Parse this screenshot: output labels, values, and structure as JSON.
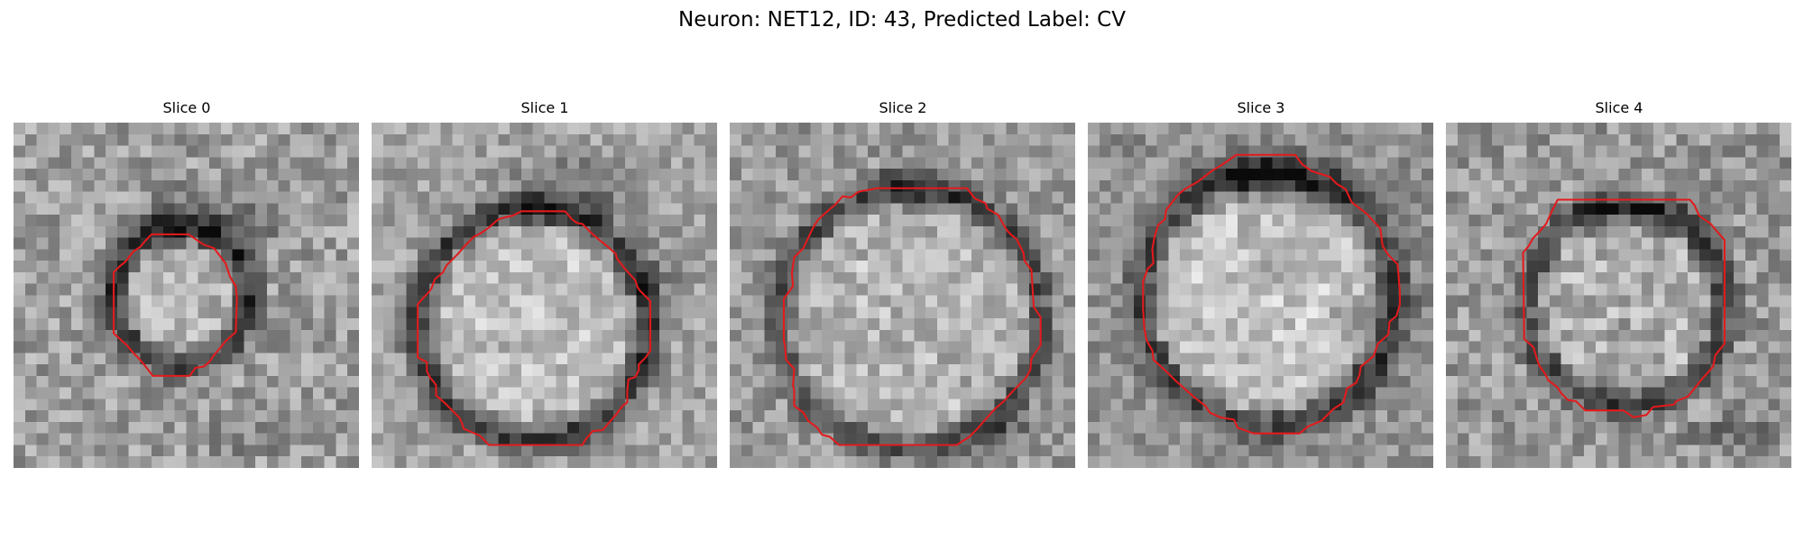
{
  "figure": {
    "title": "Neuron: NET12, ID: 43, Predicted Label: CV",
    "outline_color": "#e31a1c",
    "colormap": "grayscale"
  },
  "panels": [
    {
      "title": "Slice 0"
    },
    {
      "title": "Slice 1"
    },
    {
      "title": "Slice 2"
    },
    {
      "title": "Slice 3"
    },
    {
      "title": "Slice 4"
    }
  ]
}
